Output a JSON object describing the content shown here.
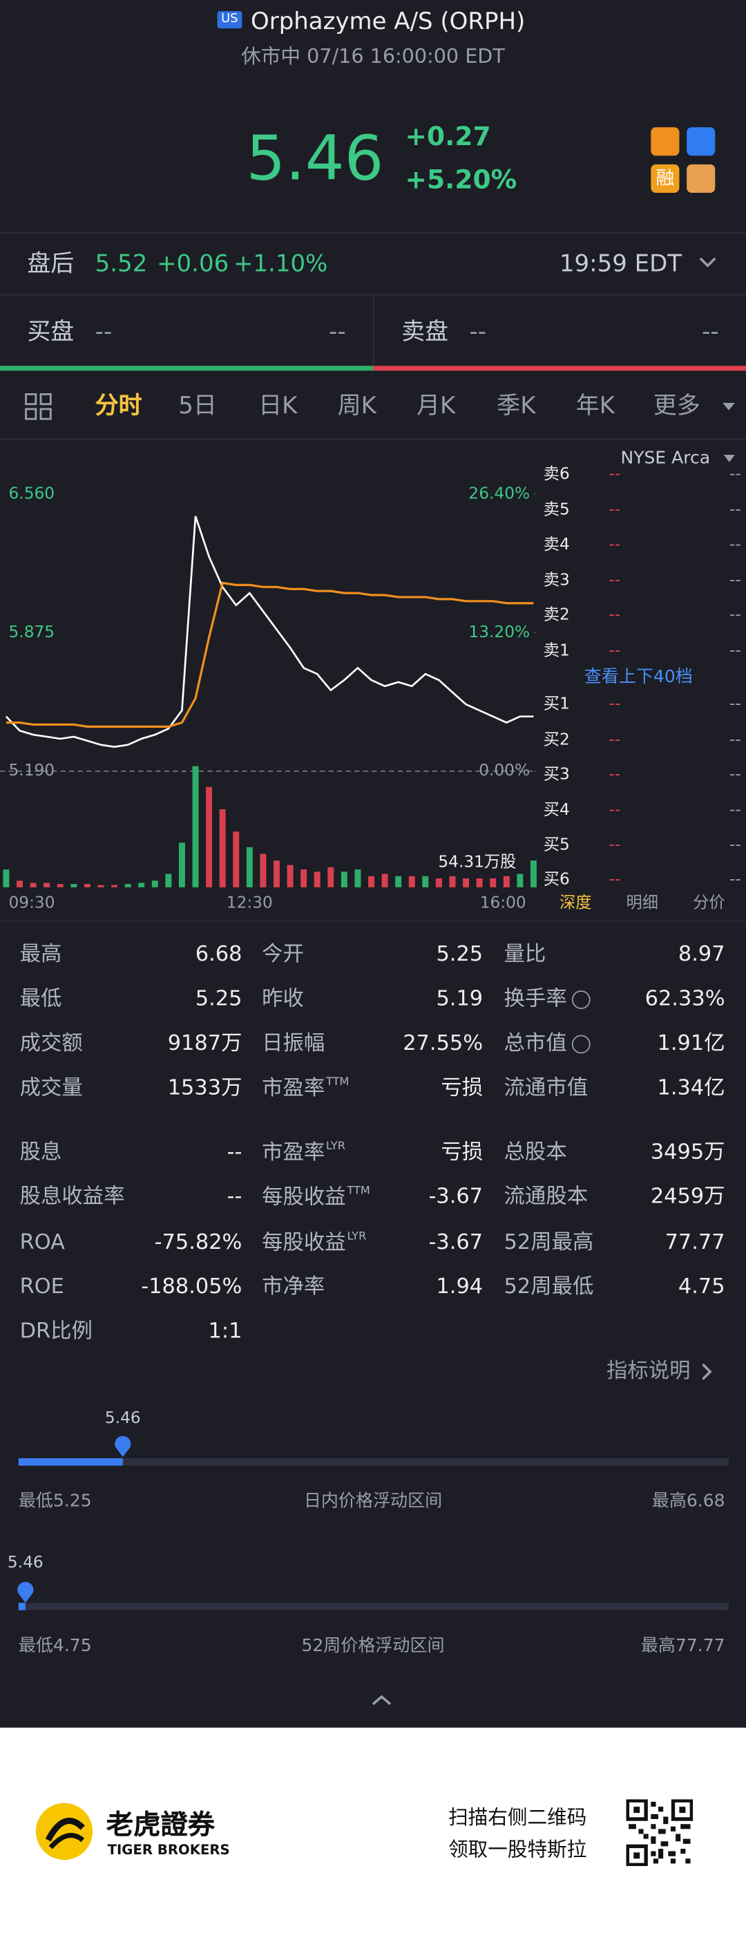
{
  "header": {
    "market_badge": "US",
    "title": "Orphazyme A/S (ORPH)",
    "status": "休市中 07/16 16:00:00 EDT"
  },
  "quote": {
    "price": "5.46",
    "change": "+0.27",
    "change_pct": "+5.20%",
    "badge": "融"
  },
  "after_hours": {
    "label": "盘后",
    "price": "5.52",
    "change": "+0.06",
    "change_pct": "+1.10%",
    "time": "19:59 EDT"
  },
  "bid_ask": {
    "bid_label": "买盘",
    "bid_price": "--",
    "bid_size": "--",
    "ask_label": "卖盘",
    "ask_price": "--",
    "ask_size": "--"
  },
  "tabs": {
    "items": [
      "分时",
      "5日",
      "日K",
      "周K",
      "月K",
      "季K",
      "年K",
      "更多"
    ],
    "active": 0
  },
  "chart_data": {
    "type": "line",
    "categories": [
      "09:30",
      null,
      null,
      null,
      null,
      null,
      null,
      null,
      null,
      null,
      null,
      null,
      null,
      null,
      null,
      null,
      null,
      null,
      "12:30",
      null,
      null,
      null,
      null,
      null,
      null,
      null,
      null,
      null,
      null,
      null,
      null,
      null,
      null,
      null,
      null,
      null,
      null,
      null,
      null,
      "16:00"
    ],
    "series": [
      {
        "name": "价格",
        "color": "#ffffff",
        "values": [
          5.46,
          5.39,
          5.37,
          5.36,
          5.35,
          5.36,
          5.34,
          5.32,
          5.31,
          5.32,
          5.35,
          5.37,
          5.4,
          5.49,
          6.45,
          6.25,
          6.1,
          6.01,
          6.07,
          5.98,
          5.89,
          5.8,
          5.7,
          5.67,
          5.59,
          5.64,
          5.7,
          5.64,
          5.61,
          5.63,
          5.61,
          5.67,
          5.64,
          5.58,
          5.52,
          5.49,
          5.46,
          5.43,
          5.46,
          5.46
        ]
      },
      {
        "name": "均价",
        "color": "#f0901e",
        "values": [
          5.43,
          5.43,
          5.42,
          5.42,
          5.42,
          5.42,
          5.41,
          5.41,
          5.41,
          5.41,
          5.41,
          5.41,
          5.41,
          5.43,
          5.55,
          5.85,
          6.12,
          6.11,
          6.11,
          6.1,
          6.1,
          6.09,
          6.09,
          6.08,
          6.08,
          6.07,
          6.07,
          6.06,
          6.06,
          6.05,
          6.05,
          6.05,
          6.04,
          6.04,
          6.03,
          6.03,
          6.03,
          6.02,
          6.02,
          6.02
        ]
      }
    ],
    "volume": {
      "values": [
        8,
        3,
        2,
        2,
        1.5,
        1.5,
        1.5,
        1,
        1,
        1.5,
        2,
        3,
        6,
        20,
        54.31,
        45,
        35,
        25,
        18,
        15,
        12,
        10,
        8,
        7,
        9,
        7,
        8,
        5,
        6,
        5,
        5,
        5,
        4,
        5,
        4,
        4,
        4,
        5,
        6,
        12
      ],
      "ylim": [
        0,
        54.31
      ],
      "up_color": "#2fae6b",
      "down_color": "#d9404f",
      "label": "54.31万股"
    },
    "ylim": [
      5.19,
      6.68
    ],
    "yticks": [
      {
        "value": 5.19,
        "label": "5.190"
      },
      {
        "value": 5.875,
        "label": "5.875"
      },
      {
        "value": 6.56,
        "label": "6.560"
      }
    ],
    "y2lim": [
      0,
      28.71
    ],
    "y2ticks": [
      {
        "value": 0,
        "label": "0.00%"
      },
      {
        "value": 13.2,
        "label": "13.20%"
      },
      {
        "value": 26.4,
        "label": "26.40%"
      }
    ]
  },
  "order_book": {
    "exchange": "NYSE Arca",
    "asks": [
      {
        "label": "卖6",
        "price": "--",
        "size": "--"
      },
      {
        "label": "卖5",
        "price": "--",
        "size": "--"
      },
      {
        "label": "卖4",
        "price": "--",
        "size": "--"
      },
      {
        "label": "卖3",
        "price": "--",
        "size": "--"
      },
      {
        "label": "卖2",
        "price": "--",
        "size": "--"
      },
      {
        "label": "卖1",
        "price": "--",
        "size": "--"
      }
    ],
    "link": "查看上下40档",
    "bids": [
      {
        "label": "买1",
        "price": "--",
        "size": "--"
      },
      {
        "label": "买2",
        "price": "--",
        "size": "--"
      },
      {
        "label": "买3",
        "price": "--",
        "size": "--"
      },
      {
        "label": "买4",
        "price": "--",
        "size": "--"
      },
      {
        "label": "买5",
        "price": "--",
        "size": "--"
      },
      {
        "label": "买6",
        "price": "--",
        "size": "--"
      }
    ],
    "tabs": [
      "深度",
      "明细",
      "分价"
    ],
    "active": 0
  },
  "stats": [
    [
      {
        "label": "最高",
        "value": "6.68"
      },
      {
        "label": "今开",
        "value": "5.25"
      },
      {
        "label": "量比",
        "value": "8.97"
      }
    ],
    [
      {
        "label": "最低",
        "value": "5.25"
      },
      {
        "label": "昨收",
        "value": "5.19"
      },
      {
        "label": "换手率",
        "value": "62.33%",
        "info": true
      }
    ],
    [
      {
        "label": "成交额",
        "value": "9187万"
      },
      {
        "label": "日振幅",
        "value": "27.55%"
      },
      {
        "label": "总市值",
        "value": "1.91亿",
        "info": true
      }
    ],
    [
      {
        "label": "成交量",
        "value": "1533万"
      },
      {
        "label": "市盈率",
        "sup": "TTM",
        "value": "亏损"
      },
      {
        "label": "流通市值",
        "value": "1.34亿"
      }
    ],
    [
      {
        "label": "股息",
        "value": "--"
      },
      {
        "label": "市盈率",
        "sup": "LYR",
        "value": "亏损"
      },
      {
        "label": "总股本",
        "value": "3495万"
      }
    ],
    [
      {
        "label": "股息收益率",
        "value": "--"
      },
      {
        "label": "每股收益",
        "sup": "TTM",
        "value": "-3.67"
      },
      {
        "label": "流通股本",
        "value": "2459万"
      }
    ],
    [
      {
        "label": "ROA",
        "value": "-75.82%"
      },
      {
        "label": "每股收益",
        "sup": "LYR",
        "value": "-3.67"
      },
      {
        "label": "52周最高",
        "value": "77.77"
      }
    ],
    [
      {
        "label": "ROE",
        "value": "-188.05%"
      },
      {
        "label": "市净率",
        "value": "1.94"
      },
      {
        "label": "52周最低",
        "value": "4.75"
      }
    ],
    [
      {
        "label": "DR比例",
        "value": "1:1"
      }
    ]
  ],
  "explain_link": "指标说明",
  "ranges": [
    {
      "current": 5.46,
      "low": {
        "value": 5.25,
        "label": "最低5.25"
      },
      "title": "日内价格浮动区间",
      "high": {
        "value": 6.68,
        "label": "最高6.68"
      }
    },
    {
      "current": 5.46,
      "low": {
        "value": 4.75,
        "label": "最低4.75"
      },
      "title": "52周价格浮动区间",
      "high": {
        "value": 77.77,
        "label": "最高77.77"
      }
    }
  ],
  "footer": {
    "brand": "老虎證券",
    "brand_en": "TIGER BROKERS",
    "promo": [
      "扫描右侧二维码",
      "领取一股特斯拉"
    ]
  }
}
